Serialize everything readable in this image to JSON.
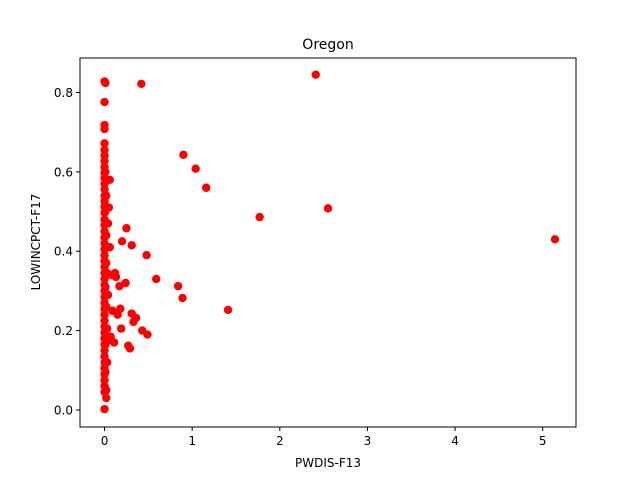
{
  "chart_data": {
    "type": "scatter",
    "title": "Oregon",
    "xlabel": "PWDIS-F13",
    "ylabel": "LOWINCPCT-F17",
    "xlim": [
      -0.28,
      5.38
    ],
    "ylim": [
      -0.043,
      0.887
    ],
    "xticks": [
      0,
      1,
      2,
      3,
      4,
      5
    ],
    "yticks": [
      0.0,
      0.2,
      0.4,
      0.6,
      0.8
    ],
    "xtick_labels": [
      "0",
      "1",
      "2",
      "3",
      "4",
      "5"
    ],
    "ytick_labels": [
      "0.0",
      "0.2",
      "0.4",
      "0.6",
      "0.8"
    ],
    "grid": false,
    "marker_color": "#ff0000",
    "points": [
      {
        "x": 0.0,
        "y": 0.828
      },
      {
        "x": 0.01,
        "y": 0.824
      },
      {
        "x": 0.0,
        "y": 0.776
      },
      {
        "x": 0.0,
        "y": 0.718
      },
      {
        "x": 0.0,
        "y": 0.708
      },
      {
        "x": 0.0,
        "y": 0.672
      },
      {
        "x": 0.0,
        "y": 0.655
      },
      {
        "x": 0.0,
        "y": 0.641
      },
      {
        "x": 0.0,
        "y": 0.627
      },
      {
        "x": 0.0,
        "y": 0.612
      },
      {
        "x": 0.0,
        "y": 0.598
      },
      {
        "x": 0.0,
        "y": 0.585
      },
      {
        "x": 0.0,
        "y": 0.57
      },
      {
        "x": 0.0,
        "y": 0.556
      },
      {
        "x": 0.0,
        "y": 0.54
      },
      {
        "x": 0.0,
        "y": 0.526
      },
      {
        "x": 0.0,
        "y": 0.512
      },
      {
        "x": 0.0,
        "y": 0.497
      },
      {
        "x": 0.0,
        "y": 0.48
      },
      {
        "x": 0.0,
        "y": 0.466
      },
      {
        "x": 0.0,
        "y": 0.45
      },
      {
        "x": 0.0,
        "y": 0.435
      },
      {
        "x": 0.0,
        "y": 0.42
      },
      {
        "x": 0.0,
        "y": 0.405
      },
      {
        "x": 0.0,
        "y": 0.39
      },
      {
        "x": 0.0,
        "y": 0.375
      },
      {
        "x": 0.0,
        "y": 0.36
      },
      {
        "x": 0.0,
        "y": 0.345
      },
      {
        "x": 0.0,
        "y": 0.33
      },
      {
        "x": 0.0,
        "y": 0.315
      },
      {
        "x": 0.0,
        "y": 0.3
      },
      {
        "x": 0.0,
        "y": 0.285
      },
      {
        "x": 0.0,
        "y": 0.27
      },
      {
        "x": 0.0,
        "y": 0.255
      },
      {
        "x": 0.0,
        "y": 0.24
      },
      {
        "x": 0.0,
        "y": 0.225
      },
      {
        "x": 0.0,
        "y": 0.21
      },
      {
        "x": 0.0,
        "y": 0.195
      },
      {
        "x": 0.0,
        "y": 0.18
      },
      {
        "x": 0.0,
        "y": 0.165
      },
      {
        "x": 0.0,
        "y": 0.15
      },
      {
        "x": 0.0,
        "y": 0.135
      },
      {
        "x": 0.0,
        "y": 0.12
      },
      {
        "x": 0.0,
        "y": 0.105
      },
      {
        "x": 0.0,
        "y": 0.09
      },
      {
        "x": 0.0,
        "y": 0.075
      },
      {
        "x": 0.0,
        "y": 0.06
      },
      {
        "x": 0.0,
        "y": 0.045
      },
      {
        "x": 0.0,
        "y": 0.002
      },
      {
        "x": 0.02,
        "y": 0.03
      },
      {
        "x": 0.02,
        "y": 0.05
      },
      {
        "x": 0.01,
        "y": 0.095
      },
      {
        "x": 0.01,
        "y": 0.165
      },
      {
        "x": 0.02,
        "y": 0.26
      },
      {
        "x": 0.01,
        "y": 0.31
      },
      {
        "x": 0.02,
        "y": 0.37
      },
      {
        "x": 0.02,
        "y": 0.44
      },
      {
        "x": 0.01,
        "y": 0.5
      },
      {
        "x": 0.02,
        "y": 0.54
      },
      {
        "x": 0.01,
        "y": 0.6
      },
      {
        "x": 0.03,
        "y": 0.12
      },
      {
        "x": 0.03,
        "y": 0.205
      },
      {
        "x": 0.03,
        "y": 0.345
      },
      {
        "x": 0.04,
        "y": 0.175
      },
      {
        "x": 0.04,
        "y": 0.29
      },
      {
        "x": 0.04,
        "y": 0.47
      },
      {
        "x": 0.05,
        "y": 0.51
      },
      {
        "x": 0.06,
        "y": 0.58
      },
      {
        "x": 0.06,
        "y": 0.41
      },
      {
        "x": 0.07,
        "y": 0.185
      },
      {
        "x": 0.08,
        "y": 0.34
      },
      {
        "x": 0.09,
        "y": 0.25
      },
      {
        "x": 0.11,
        "y": 0.17
      },
      {
        "x": 0.12,
        "y": 0.345
      },
      {
        "x": 0.13,
        "y": 0.335
      },
      {
        "x": 0.15,
        "y": 0.24
      },
      {
        "x": 0.17,
        "y": 0.312
      },
      {
        "x": 0.18,
        "y": 0.255
      },
      {
        "x": 0.19,
        "y": 0.205
      },
      {
        "x": 0.2,
        "y": 0.425
      },
      {
        "x": 0.24,
        "y": 0.32
      },
      {
        "x": 0.25,
        "y": 0.458
      },
      {
        "x": 0.27,
        "y": 0.162
      },
      {
        "x": 0.29,
        "y": 0.155
      },
      {
        "x": 0.31,
        "y": 0.415
      },
      {
        "x": 0.31,
        "y": 0.243
      },
      {
        "x": 0.33,
        "y": 0.222
      },
      {
        "x": 0.36,
        "y": 0.232
      },
      {
        "x": 0.42,
        "y": 0.822
      },
      {
        "x": 0.43,
        "y": 0.2
      },
      {
        "x": 0.48,
        "y": 0.39
      },
      {
        "x": 0.49,
        "y": 0.19
      },
      {
        "x": 0.59,
        "y": 0.33
      },
      {
        "x": 0.84,
        "y": 0.312
      },
      {
        "x": 0.89,
        "y": 0.282
      },
      {
        "x": 0.9,
        "y": 0.643
      },
      {
        "x": 1.04,
        "y": 0.608
      },
      {
        "x": 1.16,
        "y": 0.56
      },
      {
        "x": 1.41,
        "y": 0.252
      },
      {
        "x": 1.77,
        "y": 0.486
      },
      {
        "x": 2.41,
        "y": 0.845
      },
      {
        "x": 2.55,
        "y": 0.508
      },
      {
        "x": 5.14,
        "y": 0.43
      }
    ]
  }
}
